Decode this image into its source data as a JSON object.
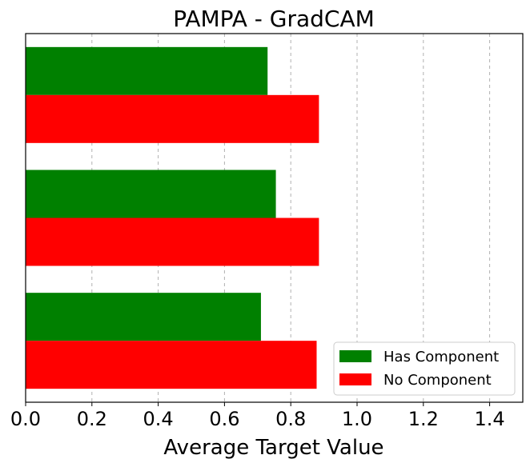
{
  "chart_data": {
    "type": "bar",
    "orientation": "horizontal",
    "title": "PAMPA - GradCAM",
    "xlabel": "Average Target Value",
    "ylabel": "",
    "xlim": [
      0,
      1.5
    ],
    "xticks": [
      "0.0",
      "0.2",
      "0.4",
      "0.6",
      "0.8",
      "1.0",
      "1.2",
      "1.4"
    ],
    "xtick_values": [
      0,
      0.2,
      0.4,
      0.6,
      0.8,
      1.0,
      1.2,
      1.4
    ],
    "categories": [
      "",
      "",
      ""
    ],
    "series": [
      {
        "name": "Has Component",
        "color": "#008000",
        "values": [
          0.73,
          0.755,
          0.71
        ]
      },
      {
        "name": "No Component",
        "color": "#ff0000",
        "values": [
          0.885,
          0.885,
          0.878
        ]
      }
    ],
    "grid": "x-dashed",
    "legend": "lower-right"
  }
}
